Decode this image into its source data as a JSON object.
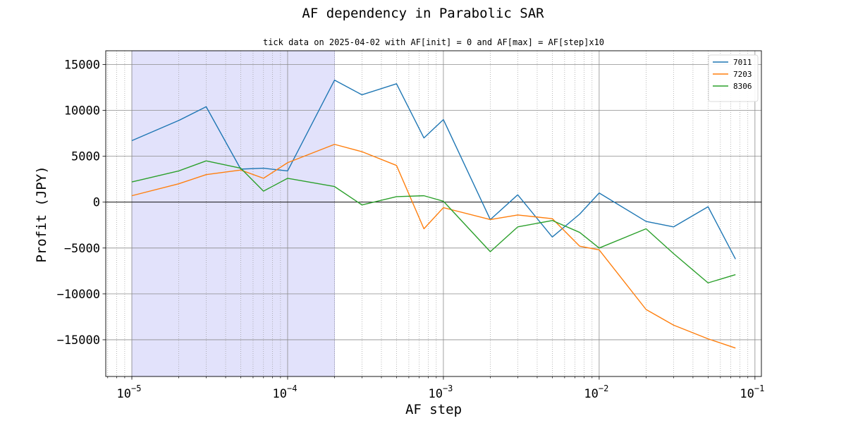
{
  "chart_data": {
    "type": "line",
    "title": "AF dependency in Parabolic SAR",
    "subtitle": "tick data on 2025-04-02 with AF[init] = 0 and AF[max] = AF[step]x10",
    "xlabel": "AF step",
    "ylabel": "Profit (JPY)",
    "xscale": "log",
    "xlim": [
      6.8e-06,
      0.11
    ],
    "ylim": [
      -19000,
      16500
    ],
    "grid": "major solid, minor dotted",
    "legend_position": "top-right",
    "x_major_ticks": [
      {
        "value": 1e-05,
        "base": "10",
        "exp": "−5"
      },
      {
        "value": 0.0001,
        "base": "10",
        "exp": "−4"
      },
      {
        "value": 0.001,
        "base": "10",
        "exp": "−3"
      },
      {
        "value": 0.01,
        "base": "10",
        "exp": "−2"
      },
      {
        "value": 0.1,
        "base": "10",
        "exp": "−1"
      }
    ],
    "y_ticks": [
      {
        "value": 15000,
        "label": "15000"
      },
      {
        "value": 10000,
        "label": "10000"
      },
      {
        "value": 5000,
        "label": "5000"
      },
      {
        "value": 0,
        "label": "0"
      },
      {
        "value": -5000,
        "label": "−5000"
      },
      {
        "value": -10000,
        "label": "−10000"
      },
      {
        "value": -15000,
        "label": "−15000"
      }
    ],
    "shaded_region": {
      "x_from": 1e-05,
      "x_to": 0.0002,
      "color": "#e2e2fb"
    },
    "zero_line": true,
    "x": [
      1e-05,
      2e-05,
      3e-05,
      5e-05,
      7e-05,
      0.0001,
      0.0002,
      0.0003,
      0.0005,
      0.00075,
      0.001,
      0.002,
      0.003,
      0.005,
      0.0075,
      0.01,
      0.02,
      0.03,
      0.05,
      0.075
    ],
    "series": [
      {
        "name": "7011",
        "color": "#1f77b4",
        "values": [
          6700,
          8900,
          10400,
          3600,
          3700,
          3400,
          13300,
          11700,
          12900,
          7000,
          9000,
          -1900,
          800,
          -3800,
          -1300,
          1000,
          -2100,
          -2700,
          -500,
          -6200
        ]
      },
      {
        "name": "7203",
        "color": "#ff7f0e",
        "values": [
          700,
          2000,
          3000,
          3500,
          2600,
          4300,
          6300,
          5500,
          4000,
          -2900,
          -600,
          -1900,
          -1400,
          -1800,
          -4800,
          -5200,
          -11700,
          -13400,
          -14900,
          -15900
        ]
      },
      {
        "name": "8306",
        "color": "#2ca02c",
        "values": [
          2200,
          3400,
          4500,
          3700,
          1200,
          2600,
          1700,
          -300,
          600,
          700,
          100,
          -5400,
          -2700,
          -2000,
          -3300,
          -5000,
          -2900,
          -5600,
          -8800,
          -7900
        ]
      }
    ]
  }
}
